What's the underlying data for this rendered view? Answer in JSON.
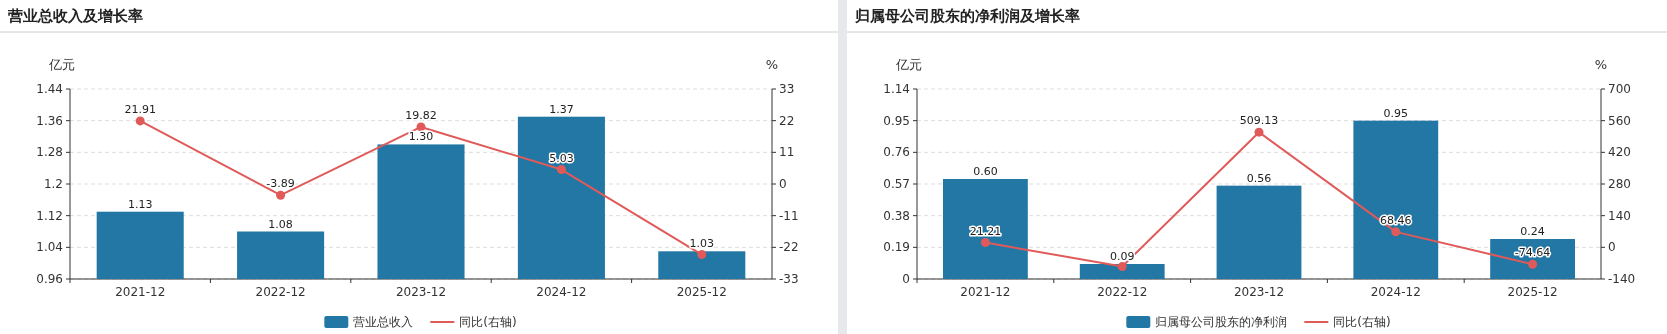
{
  "chart_data": [
    {
      "type": "bar",
      "title": "营业总收入及增长率",
      "categories": [
        "2021-12",
        "2022-12",
        "2023-12",
        "2024-12",
        "2025-12"
      ],
      "ylabel": "亿元",
      "y2label": "%",
      "ylim": [
        0.96,
        1.44
      ],
      "yticks": [
        0.96,
        1.04,
        1.12,
        1.2,
        1.28,
        1.36,
        1.44
      ],
      "y2lim": [
        -33,
        33
      ],
      "y2ticks": [
        -33,
        -22,
        -11,
        0,
        11,
        22,
        33
      ],
      "grid": "y",
      "legend": "bottom",
      "marker": "circle",
      "series": [
        {
          "name": "营业总收入",
          "color": "#2277a4",
          "values": [
            1.13,
            1.08,
            1.3,
            1.37,
            1.03
          ],
          "value_labels": [
            "1.13",
            "1.08",
            "1.30",
            "1.37",
            "1.03"
          ]
        },
        {
          "name": "同比(右轴)",
          "type": "line",
          "axis": "y2",
          "color": "#e05a5a",
          "values": [
            21.91,
            -3.89,
            19.82,
            5.03,
            -24.5
          ],
          "value_labels": [
            "21.91",
            "-3.89",
            "19.82",
            "5.03",
            null
          ]
        }
      ]
    },
    {
      "type": "bar",
      "title": "归属母公司股东的净利润及增长率",
      "categories": [
        "2021-12",
        "2022-12",
        "2023-12",
        "2024-12",
        "2025-12"
      ],
      "ylabel": "亿元",
      "y2label": "%",
      "ylim": [
        0,
        1.14
      ],
      "yticks": [
        0,
        0.19,
        0.38,
        0.57,
        0.76,
        0.95,
        1.14
      ],
      "y2lim": [
        -140,
        700
      ],
      "y2ticks": [
        -140,
        0,
        140,
        280,
        420,
        560,
        700
      ],
      "grid": "y",
      "legend": "bottom",
      "marker": "circle",
      "series": [
        {
          "name": "归属母公司股东的净利润",
          "color": "#2277a4",
          "values": [
            0.6,
            0.09,
            0.56,
            0.95,
            0.24
          ],
          "value_labels": [
            "0.60",
            "0.09",
            "0.56",
            "0.95",
            "0.24"
          ]
        },
        {
          "name": "同比(右轴)",
          "type": "line",
          "axis": "y2",
          "color": "#e05a5a",
          "values": [
            21.21,
            -85,
            509.13,
            68.46,
            -74.64
          ],
          "value_labels": [
            "21.21",
            null,
            "509.13",
            "68.46",
            "-74.64"
          ]
        }
      ]
    }
  ]
}
